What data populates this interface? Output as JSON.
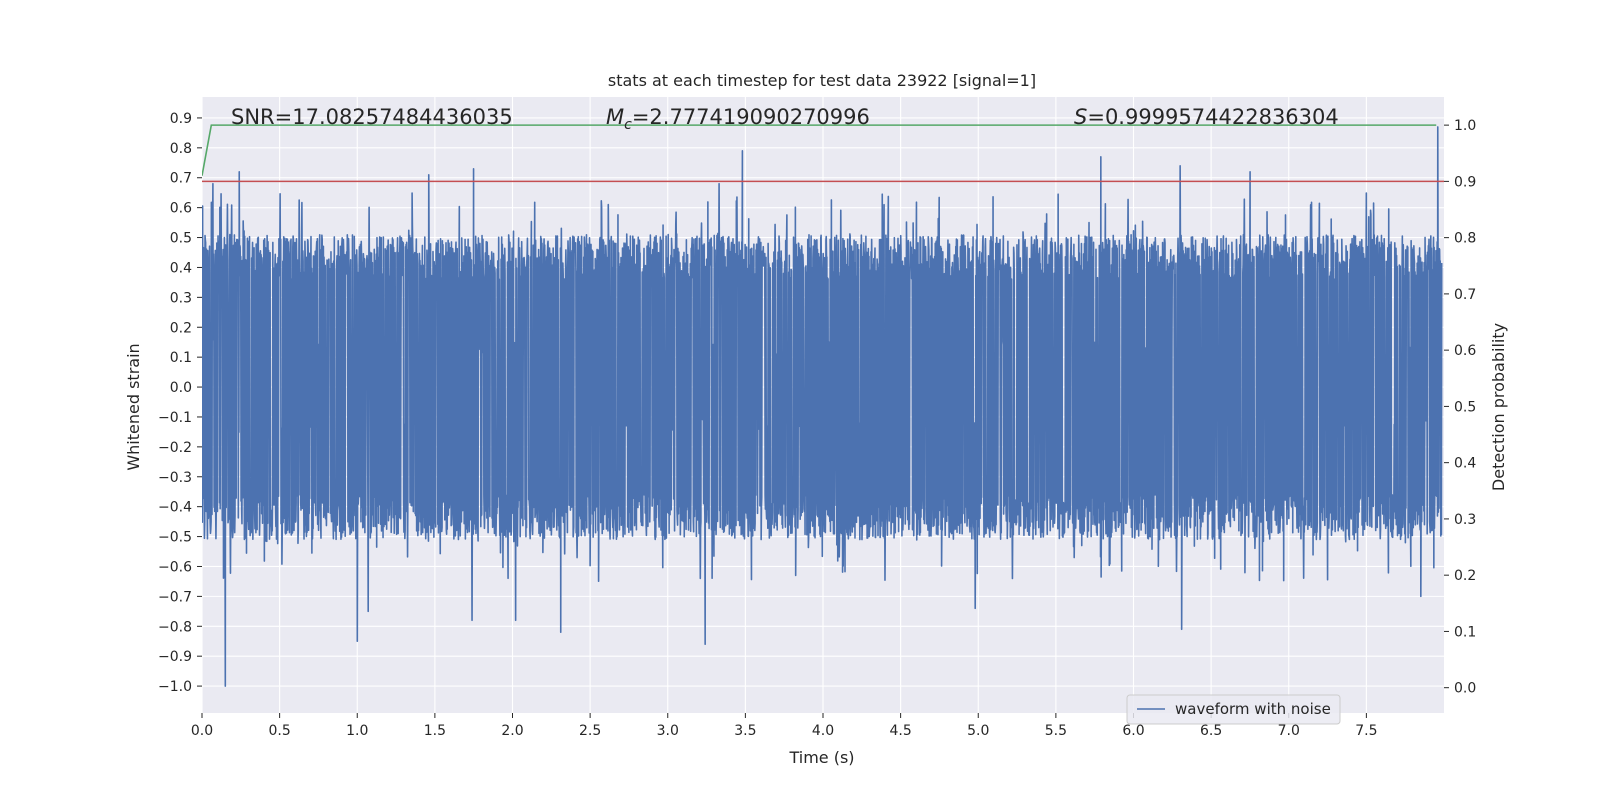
{
  "chart_data": {
    "type": "line",
    "title": "stats at each timestep for test data 23922 [signal=1]",
    "xlabel": "Time (s)",
    "ylabel": "Whitened strain",
    "y2label": "Detection probability",
    "xlim": [
      0.0,
      8.0
    ],
    "ylim": [
      -1.09,
      0.97
    ],
    "y2lim": [
      -0.045,
      1.05
    ],
    "x_ticks": [
      0.0,
      0.5,
      1.0,
      1.5,
      2.0,
      2.5,
      3.0,
      3.5,
      4.0,
      4.5,
      5.0,
      5.5,
      6.0,
      6.5,
      7.0,
      7.5
    ],
    "x_tick_labels": [
      "0.0",
      "0.5",
      "1.0",
      "1.5",
      "2.0",
      "2.5",
      "3.0",
      "3.5",
      "4.0",
      "4.5",
      "5.0",
      "5.5",
      "6.0",
      "6.5",
      "7.0",
      "7.5"
    ],
    "y_ticks": [
      0.9,
      0.8,
      0.7,
      0.6,
      0.5,
      0.4,
      0.3,
      0.2,
      0.1,
      0.0,
      -0.1,
      -0.2,
      -0.3,
      -0.4,
      -0.5,
      -0.6,
      -0.7,
      -0.8,
      -0.9,
      -1.0
    ],
    "y_tick_labels": [
      "0.9",
      "0.8",
      "0.7",
      "0.6",
      "0.5",
      "0.4",
      "0.3",
      "0.2",
      "0.1",
      "0.0",
      "−0.1",
      "−0.2",
      "−0.3",
      "−0.4",
      "−0.5",
      "−0.6",
      "−0.7",
      "−0.8",
      "−0.9",
      "−1.0"
    ],
    "y2_ticks": [
      1.0,
      0.9,
      0.8,
      0.7,
      0.6,
      0.5,
      0.4,
      0.3,
      0.2,
      0.1,
      0.0
    ],
    "y2_tick_labels": [
      "1.0",
      "0.9",
      "0.8",
      "0.7",
      "0.6",
      "0.5",
      "0.4",
      "0.3",
      "0.2",
      "0.1",
      "0.0"
    ],
    "annotations": {
      "snr": "SNR=17.08257484436035",
      "mc_symbol": "M",
      "mc_sub": "c",
      "mc_value": "=2.777419090270996",
      "s_symbol": "S",
      "s_value": "=0.9999574422836304"
    },
    "legend": {
      "placement": "lower-right",
      "entries": [
        "waveform with noise"
      ]
    },
    "grid": true,
    "colors": {
      "waveform": "#4c72b0",
      "detection_probability": "#55a868",
      "threshold": "#c44e52",
      "axes_bg": "#eaeaf2",
      "grid": "#ffffff"
    },
    "series": [
      {
        "name": "waveform with noise",
        "axis": "left",
        "samples": 4096,
        "dt": 0.00195,
        "seed": 23922,
        "noise_band": [
          -0.3,
          0.3
        ],
        "spikes": [
          {
            "x": 0.15,
            "y": -1.0
          },
          {
            "x": 0.24,
            "y": 0.72
          },
          {
            "x": 0.07,
            "y": 0.68
          },
          {
            "x": 1.0,
            "y": -0.85
          },
          {
            "x": 1.07,
            "y": -0.75
          },
          {
            "x": 1.46,
            "y": 0.71
          },
          {
            "x": 1.75,
            "y": 0.73
          },
          {
            "x": 1.74,
            "y": -0.78
          },
          {
            "x": 2.02,
            "y": -0.78
          },
          {
            "x": 2.31,
            "y": -0.82
          },
          {
            "x": 3.24,
            "y": -0.86
          },
          {
            "x": 3.48,
            "y": 0.79
          },
          {
            "x": 3.33,
            "y": 0.68
          },
          {
            "x": 4.98,
            "y": -0.74
          },
          {
            "x": 5.79,
            "y": 0.77
          },
          {
            "x": 6.3,
            "y": 0.74
          },
          {
            "x": 6.31,
            "y": -0.81
          },
          {
            "x": 6.75,
            "y": 0.72
          },
          {
            "x": 7.96,
            "y": 0.87
          },
          {
            "x": 7.85,
            "y": -0.7
          }
        ]
      },
      {
        "name": "",
        "axis": "right",
        "x": [
          0.0,
          0.06,
          7.95
        ],
        "values": [
          0.91,
          1.0,
          1.0
        ]
      },
      {
        "name": "",
        "axis": "right",
        "x": [
          0.0,
          8.0
        ],
        "values": [
          0.9,
          0.9
        ]
      }
    ]
  }
}
